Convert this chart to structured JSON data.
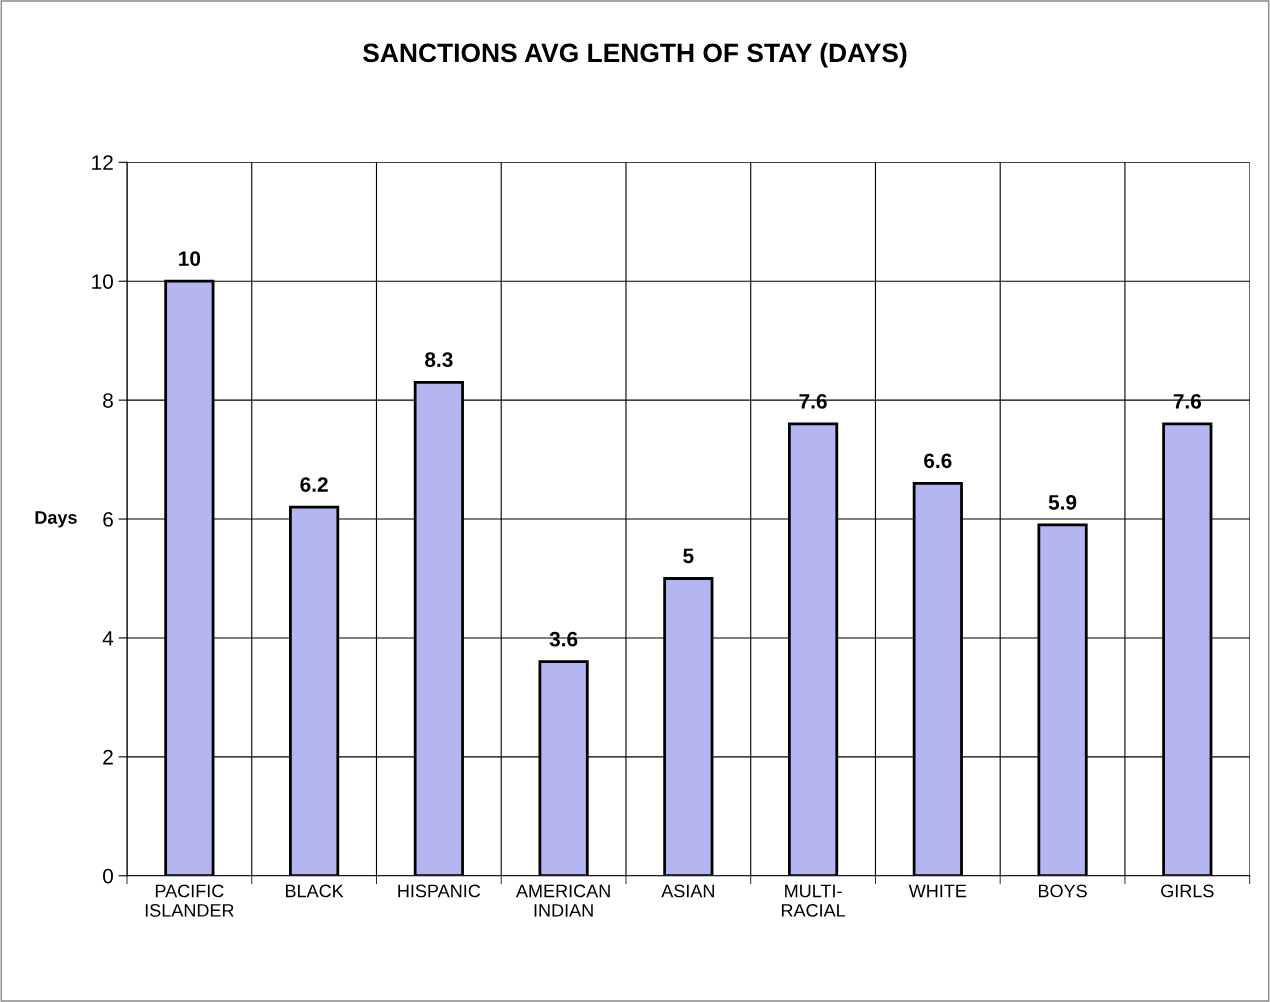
{
  "chart_data": {
    "type": "bar",
    "title": "SANCTIONS AVG LENGTH OF STAY (DAYS)",
    "ylabel": "Days",
    "categories": [
      "PACIFIC\nISLANDER",
      "BLACK",
      "HISPANIC",
      "AMERICAN\nINDIAN",
      "ASIAN",
      "MULTI-\nRACIAL",
      "WHITE",
      "BOYS",
      "GIRLS"
    ],
    "values": [
      10,
      6.2,
      8.3,
      3.6,
      5,
      7.6,
      6.6,
      5.9,
      7.6
    ],
    "color": "#b4b6f2",
    "ylim": [
      0,
      12
    ],
    "yticks": [
      0,
      2,
      4,
      6,
      8,
      10,
      12
    ],
    "grid": true,
    "data_labels": true
  }
}
